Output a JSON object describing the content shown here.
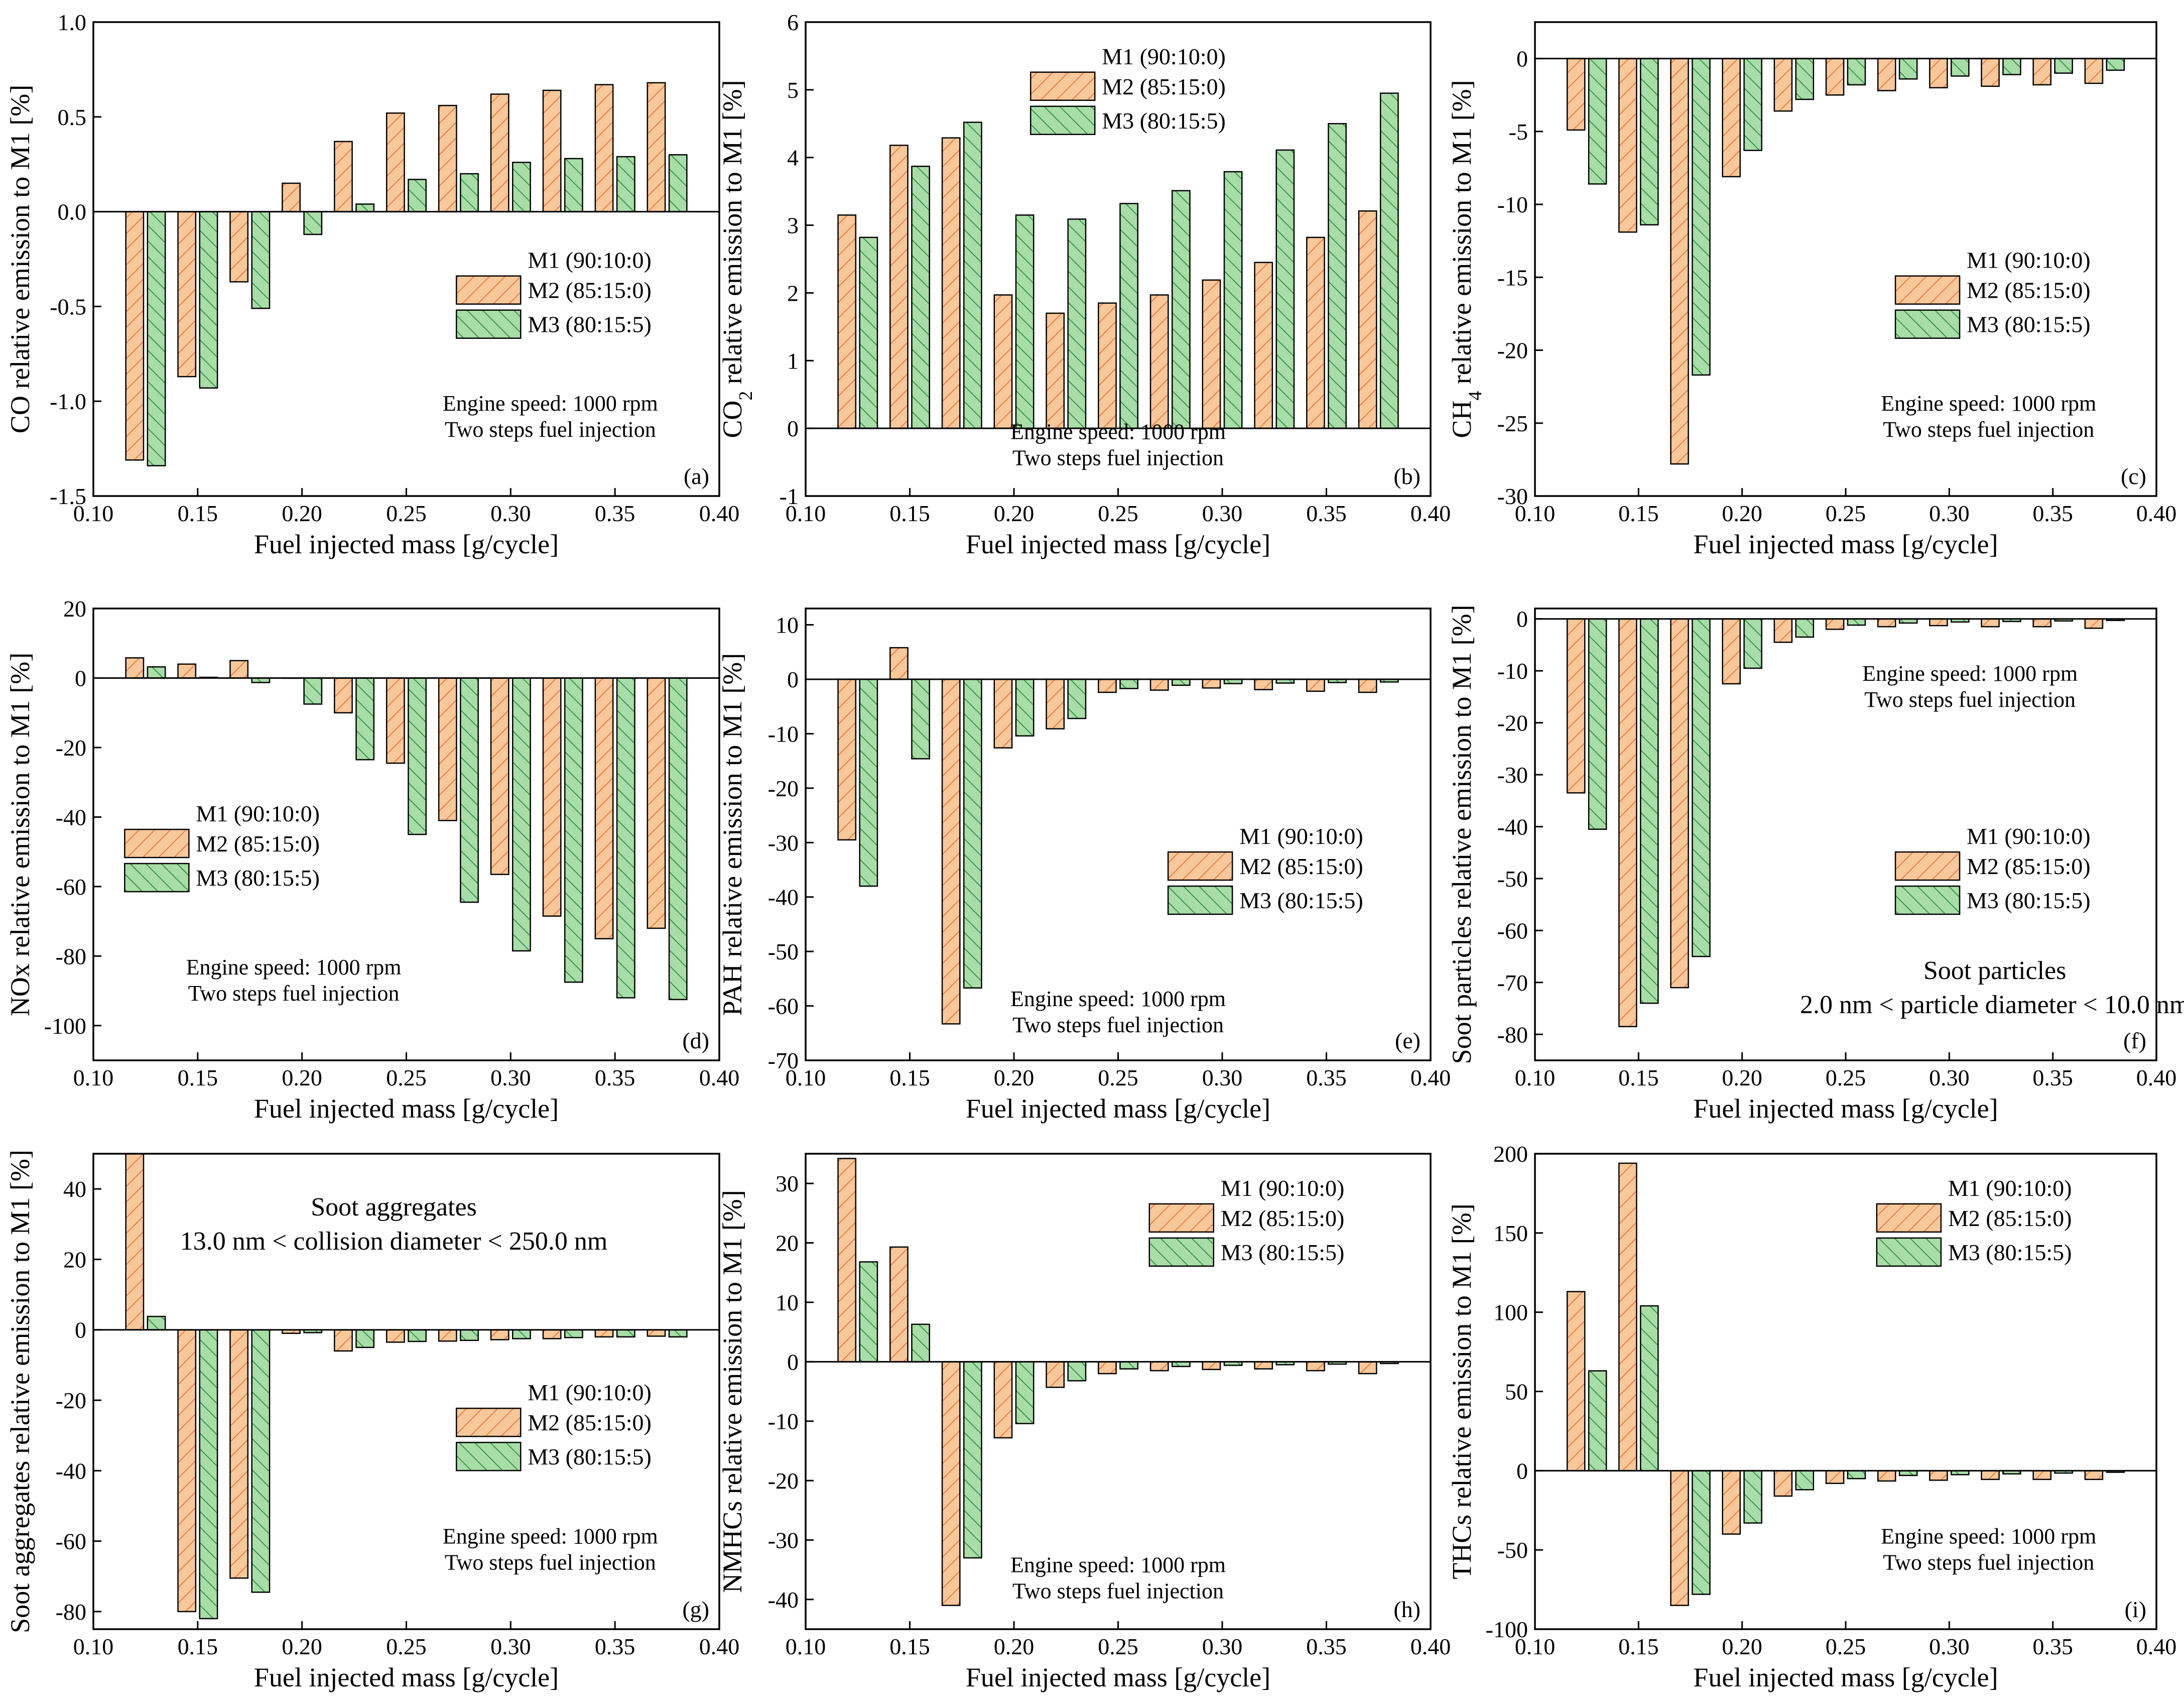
{
  "colors": {
    "m2_fill": "#F8C79A",
    "m2_hatch": "#E0783A",
    "m3_fill": "#A8DDA8",
    "m3_hatch": "#2E8B3E",
    "axis": "#000000"
  },
  "chart_data": [
    {
      "id": "a",
      "type": "bar",
      "panel_label": "(a)",
      "xlabel": "Fuel injected mass  [g/cycle]",
      "ylabel": "CO relative emission to M1 [%]",
      "xlim": [
        0.1,
        0.4
      ],
      "ylim": [
        -1.5,
        1.0
      ],
      "x_ticks": [
        "0.10",
        "0.15",
        "0.20",
        "0.25",
        "0.30",
        "0.35",
        "0.40"
      ],
      "y_ticks": [
        "1.0",
        "0.5",
        "0.0",
        "-0.5",
        "-1.0",
        "-1.5"
      ],
      "x": [
        0.125,
        0.15,
        0.175,
        0.2,
        0.225,
        0.25,
        0.275,
        0.3,
        0.325,
        0.35,
        0.375
      ],
      "series": [
        {
          "name": "M2 (85:15:0)",
          "values": [
            -1.31,
            -0.87,
            -0.37,
            0.15,
            0.37,
            0.52,
            0.56,
            0.62,
            0.64,
            0.67,
            0.68
          ]
        },
        {
          "name": "M3 (80:15:5)",
          "values": [
            -1.34,
            -0.93,
            -0.51,
            -0.12,
            0.04,
            0.17,
            0.2,
            0.26,
            0.28,
            0.29,
            0.3
          ]
        }
      ],
      "legend": {
        "title": "M1 (90:10:0)",
        "position": "middle-right"
      },
      "annotation": [
        "Engine speed: 1000 rpm",
        "Two steps fuel injection"
      ],
      "annotation_position": "bottom-right"
    },
    {
      "id": "b",
      "type": "bar",
      "panel_label": "(b)",
      "xlabel": "Fuel injected mass  [g/cycle]",
      "ylabel": "CO2 relative emission to M1 [%]",
      "xlim": [
        0.1,
        0.4
      ],
      "ylim": [
        -1,
        6
      ],
      "x_ticks": [
        "0.10",
        "0.15",
        "0.20",
        "0.25",
        "0.30",
        "0.35",
        "0.40"
      ],
      "y_ticks": [
        "6",
        "5",
        "4",
        "3",
        "2",
        "1",
        "0",
        "-1"
      ],
      "x": [
        0.125,
        0.15,
        0.175,
        0.2,
        0.225,
        0.25,
        0.275,
        0.3,
        0.325,
        0.35,
        0.375
      ],
      "series": [
        {
          "name": "M2 (85:15:0)",
          "values": [
            3.15,
            4.18,
            4.29,
            1.97,
            1.7,
            1.85,
            1.97,
            2.19,
            2.45,
            2.82,
            3.21
          ]
        },
        {
          "name": "M3 (80:15:5)",
          "values": [
            2.82,
            3.87,
            4.52,
            3.15,
            3.09,
            3.32,
            3.51,
            3.79,
            4.11,
            4.5,
            4.95
          ]
        }
      ],
      "legend": {
        "title": "M1 (90:10:0)",
        "position": "top-center"
      },
      "annotation": [
        "Engine speed: 1000 rpm",
        "Two steps fuel injection"
      ],
      "annotation_position": "bottom-center"
    },
    {
      "id": "c",
      "type": "bar",
      "panel_label": "(c)",
      "xlabel": "Fuel injected mass  [g/cycle]",
      "ylabel": "CH4 relative emission to M1 [%]",
      "xlim": [
        0.1,
        0.4
      ],
      "ylim": [
        -30,
        2.5
      ],
      "x_ticks": [
        "0.10",
        "0.15",
        "0.20",
        "0.25",
        "0.30",
        "0.35",
        "0.40"
      ],
      "y_ticks": [
        "0",
        "-5",
        "-10",
        "-15",
        "-20",
        "-25",
        "-30"
      ],
      "x": [
        0.125,
        0.15,
        0.175,
        0.2,
        0.225,
        0.25,
        0.275,
        0.3,
        0.325,
        0.35,
        0.375
      ],
      "series": [
        {
          "name": "M2 (85:15:0)",
          "values": [
            -4.9,
            -11.9,
            -27.8,
            -8.1,
            -3.6,
            -2.5,
            -2.2,
            -2.0,
            -1.9,
            -1.8,
            -1.7
          ]
        },
        {
          "name": "M3 (80:15:5)",
          "values": [
            -8.6,
            -11.4,
            -21.7,
            -6.3,
            -2.8,
            -1.8,
            -1.4,
            -1.2,
            -1.1,
            -1.0,
            -0.8
          ]
        }
      ],
      "legend": {
        "title": "M1 (90:10:0)",
        "position": "middle-right"
      },
      "annotation": [
        "Engine speed: 1000 rpm",
        "Two steps fuel injection"
      ],
      "annotation_position": "bottom-right"
    },
    {
      "id": "d",
      "type": "bar",
      "panel_label": "(d)",
      "xlabel": "Fuel injected mass  [g/cycle]",
      "ylabel": "NOx relative emission to M1 [%]",
      "xlim": [
        0.1,
        0.4
      ],
      "ylim": [
        -110,
        20
      ],
      "x_ticks": [
        "0.10",
        "0.15",
        "0.20",
        "0.25",
        "0.30",
        "0.35",
        "0.40"
      ],
      "y_ticks": [
        "20",
        "0",
        "-20",
        "-40",
        "-60",
        "-80",
        "-100"
      ],
      "x": [
        0.125,
        0.15,
        0.175,
        0.2,
        0.225,
        0.25,
        0.275,
        0.3,
        0.325,
        0.35,
        0.375
      ],
      "series": [
        {
          "name": "M2 (85:15:0)",
          "values": [
            5.8,
            4.0,
            5.0,
            0.0,
            -10.0,
            -24.5,
            -41.0,
            -56.5,
            -68.5,
            -75.0,
            -72.0
          ]
        },
        {
          "name": "M3 (80:15:5)",
          "values": [
            3.2,
            0.2,
            -1.3,
            -7.5,
            -23.5,
            -45.0,
            -64.5,
            -78.5,
            -87.5,
            -92.0,
            -92.5
          ]
        }
      ],
      "legend": {
        "title": "M1 (90:10:0)",
        "position": "middle-left"
      },
      "annotation": [
        "Engine speed: 1000 rpm",
        "Two steps fuel injection"
      ],
      "annotation_position": "bottom-left"
    },
    {
      "id": "e",
      "type": "bar",
      "panel_label": "(e)",
      "xlabel": "Fuel injected mass  [g/cycle]",
      "ylabel": "PAH relative emission to M1 [%]",
      "xlim": [
        0.1,
        0.4
      ],
      "ylim": [
        -70,
        13
      ],
      "x_ticks": [
        "0.10",
        "0.15",
        "0.20",
        "0.25",
        "0.30",
        "0.35",
        "0.40"
      ],
      "y_ticks": [
        "10",
        "0",
        "-10",
        "-20",
        "-30",
        "-40",
        "-50",
        "-60",
        "-70"
      ],
      "x": [
        0.125,
        0.15,
        0.175,
        0.2,
        0.225,
        0.25,
        0.275,
        0.3,
        0.325,
        0.35,
        0.375
      ],
      "series": [
        {
          "name": "M2 (85:15:0)",
          "values": [
            -29.5,
            5.8,
            -63.3,
            -12.6,
            -9.1,
            -2.4,
            -2.0,
            -1.6,
            -1.9,
            -2.2,
            -2.4
          ]
        },
        {
          "name": "M3 (80:15:5)",
          "values": [
            -38.0,
            -14.6,
            -56.7,
            -10.4,
            -7.2,
            -1.7,
            -1.1,
            -0.8,
            -0.7,
            -0.6,
            -0.5
          ]
        }
      ],
      "legend": {
        "title": "M1 (90:10:0)",
        "position": "middle-right"
      },
      "annotation": [
        "Engine speed: 1000 rpm",
        "Two steps fuel injection"
      ],
      "annotation_position": "bottom-center"
    },
    {
      "id": "f",
      "type": "bar",
      "panel_label": "(f)",
      "xlabel": "Fuel injected mass  [g/cycle]",
      "ylabel": "Soot particles relative emission to M1 [%]",
      "xlim": [
        0.1,
        0.4
      ],
      "ylim": [
        -85,
        2
      ],
      "x_ticks": [
        "0.10",
        "0.15",
        "0.20",
        "0.25",
        "0.30",
        "0.35",
        "0.40"
      ],
      "y_ticks": [
        "0",
        "-10",
        "-20",
        "-30",
        "-40",
        "-50",
        "-60",
        "-70",
        "-80"
      ],
      "x": [
        0.125,
        0.15,
        0.175,
        0.2,
        0.225,
        0.25,
        0.275,
        0.3,
        0.325,
        0.35,
        0.375
      ],
      "series": [
        {
          "name": "M2 (85:15:0)",
          "values": [
            -33.5,
            -78.5,
            -71.0,
            -12.5,
            -4.5,
            -2.0,
            -1.5,
            -1.3,
            -1.5,
            -1.5,
            -1.8
          ]
        },
        {
          "name": "M3 (80:15:5)",
          "values": [
            -40.5,
            -74.0,
            -65.0,
            -9.5,
            -3.5,
            -1.2,
            -0.8,
            -0.6,
            -0.5,
            -0.4,
            -0.3
          ]
        }
      ],
      "legend": {
        "title": "M1 (90:10:0)",
        "position": "middle-right"
      },
      "annotation": [
        "Engine speed: 1000 rpm",
        "Two steps fuel injection"
      ],
      "annotation_position": "top-right",
      "extra_annotation": [
        "Soot particles",
        "2.0 nm < particle diameter < 10.0 nm"
      ]
    },
    {
      "id": "g",
      "type": "bar",
      "panel_label": "(g)",
      "xlabel": "Fuel injected mass  [g/cycle]",
      "ylabel": "Soot aggregates relative emission to M1 [%]",
      "xlim": [
        0.1,
        0.4
      ],
      "ylim": [
        -85,
        50
      ],
      "x_ticks": [
        "0.10",
        "0.15",
        "0.20",
        "0.25",
        "0.30",
        "0.35",
        "0.40"
      ],
      "y_ticks": [
        "40",
        "20",
        "0",
        "-20",
        "-40",
        "-60",
        "-80"
      ],
      "x": [
        0.125,
        0.15,
        0.175,
        0.2,
        0.225,
        0.25,
        0.275,
        0.3,
        0.325,
        0.35,
        0.375
      ],
      "series": [
        {
          "name": "M2 (85:15:0)",
          "values": [
            50.0,
            -80.0,
            -70.5,
            -1.0,
            -6.0,
            -3.5,
            -3.2,
            -2.8,
            -2.5,
            -2.0,
            -1.8
          ]
        },
        {
          "name": "M3 (80:15:5)",
          "values": [
            3.8,
            -82.0,
            -74.5,
            -0.8,
            -5.0,
            -3.3,
            -3.0,
            -2.5,
            -2.2,
            -2.0,
            -2.0
          ]
        }
      ],
      "legend": {
        "title": "M1 (90:10:0)",
        "position": "middle-right"
      },
      "annotation": [
        "Engine speed: 1000 rpm",
        "Two steps fuel injection"
      ],
      "annotation_position": "bottom-right",
      "extra_annotation": [
        "Soot aggregates",
        "13.0 nm < collision diameter < 250.0 nm"
      ]
    },
    {
      "id": "h",
      "type": "bar",
      "panel_label": "(h)",
      "xlabel": "Fuel injected mass  [g/cycle]",
      "ylabel": "NMHCs relative emission to M1 [%]",
      "xlim": [
        0.1,
        0.4
      ],
      "ylim": [
        -45,
        35
      ],
      "x_ticks": [
        "0.10",
        "0.15",
        "0.20",
        "0.25",
        "0.30",
        "0.35",
        "0.40"
      ],
      "y_ticks": [
        "30",
        "20",
        "10",
        "0",
        "-10",
        "-20",
        "-30",
        "-40"
      ],
      "x": [
        0.125,
        0.15,
        0.175,
        0.2,
        0.225,
        0.25,
        0.275,
        0.3,
        0.325,
        0.35,
        0.375
      ],
      "series": [
        {
          "name": "M2 (85:15:0)",
          "values": [
            34.2,
            19.3,
            -41.0,
            -12.8,
            -4.3,
            -2.0,
            -1.5,
            -1.3,
            -1.2,
            -1.5,
            -2.0
          ]
        },
        {
          "name": "M3 (80:15:5)",
          "values": [
            16.8,
            6.3,
            -33.0,
            -10.4,
            -3.2,
            -1.2,
            -0.8,
            -0.6,
            -0.5,
            -0.4,
            -0.3
          ]
        }
      ],
      "legend": {
        "title": "M1 (90:10:0)",
        "position": "top-right"
      },
      "annotation": [
        "Engine speed: 1000 rpm",
        "Two steps fuel injection"
      ],
      "annotation_position": "bottom-center"
    },
    {
      "id": "i",
      "type": "bar",
      "panel_label": "(i)",
      "xlabel": "Fuel injected mass  [g/cycle]",
      "ylabel": "THCs relative emission to M1 [%]",
      "xlim": [
        0.1,
        0.4
      ],
      "ylim": [
        -100,
        200
      ],
      "x_ticks": [
        "0.10",
        "0.15",
        "0.20",
        "0.25",
        "0.30",
        "0.35",
        "0.40"
      ],
      "y_ticks": [
        "200",
        "150",
        "100",
        "50",
        "0",
        "-50",
        "-100"
      ],
      "x": [
        0.125,
        0.15,
        0.175,
        0.2,
        0.225,
        0.25,
        0.275,
        0.3,
        0.325,
        0.35,
        0.375
      ],
      "series": [
        {
          "name": "M2 (85:15:0)",
          "values": [
            113.0,
            194.0,
            -85.0,
            -40.0,
            -16.0,
            -8.0,
            -6.5,
            -6.0,
            -5.5,
            -5.5,
            -5.5
          ]
        },
        {
          "name": "M3 (80:15:5)",
          "values": [
            63.0,
            104.0,
            -78.0,
            -33.0,
            -12.0,
            -5.0,
            -3.0,
            -2.5,
            -2.0,
            -1.5,
            -1.0
          ]
        }
      ],
      "legend": {
        "title": "M1 (90:10:0)",
        "position": "top-right"
      },
      "annotation": [
        "Engine speed: 1000 rpm",
        "Two steps fuel injection"
      ],
      "annotation_position": "bottom-right"
    }
  ]
}
